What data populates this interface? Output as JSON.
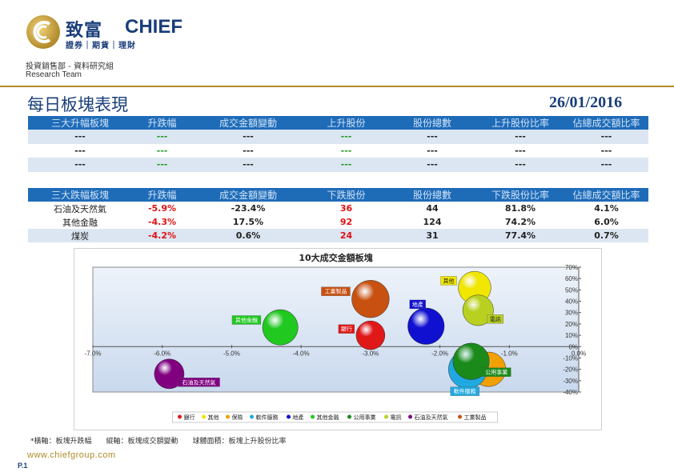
{
  "brand": {
    "cn": "致富",
    "en": "CHIEF",
    "sub": "證券｜期貨｜理財"
  },
  "dept": "投資銷售部 - 資料研究組",
  "team": "Research Team",
  "title": "每日板塊表現",
  "date": "26/01/2016",
  "colors": {
    "header_bg": "#1e6bb8",
    "band": "#dce6f2",
    "gold": "#b08a2a",
    "navy": "#1a3e7a",
    "red": "#e01010",
    "green": "#1f9a1f"
  },
  "top_table": {
    "headers": [
      "三大升幅板塊",
      "升跌幅",
      "成交金額變動",
      "上升股份",
      "股份總數",
      "上升股份比率",
      "佔總成交額比率"
    ],
    "rows": [
      [
        "---",
        "---",
        "---",
        "---",
        "---",
        "---",
        "---"
      ],
      [
        "---",
        "---",
        "---",
        "---",
        "---",
        "---",
        "---"
      ],
      [
        "---",
        "---",
        "---",
        "---",
        "---",
        "---",
        "---"
      ]
    ]
  },
  "bottom_table": {
    "headers": [
      "三大跌幅板塊",
      "升跌幅",
      "成交金額變動",
      "下跌股份",
      "股份總數",
      "下跌股份比率",
      "佔總成交額比率"
    ],
    "rows": [
      [
        "石油及天然氣",
        "-5.9%",
        "-23.4%",
        "36",
        "44",
        "81.8%",
        "4.1%"
      ],
      [
        "其他金融",
        "-4.3%",
        "17.5%",
        "92",
        "124",
        "74.2%",
        "6.0%"
      ],
      [
        "煤炭",
        "-4.2%",
        "0.6%",
        "24",
        "31",
        "77.4%",
        "0.7%"
      ]
    ]
  },
  "chart_data": {
    "type": "scatter",
    "title": "10大成交金額板塊",
    "xlim": [
      -7.0,
      0.0
    ],
    "ylim": [
      -40,
      70
    ],
    "x_ticks": [
      "-7.0%",
      "-6.0%",
      "-5.0%",
      "-4.0%",
      "-3.0%",
      "-2.0%",
      "-1.0%",
      "0.0%"
    ],
    "y_ticks": [
      "70%",
      "60%",
      "50%",
      "40%",
      "30%",
      "20%",
      "10%",
      "0%",
      "-10%",
      "-20%",
      "-30%",
      "-40%"
    ],
    "series": [
      {
        "name": "銀行",
        "x": -3.0,
        "y": 10,
        "size": 0.5,
        "color": "#e01818",
        "label_color": "#e01818",
        "label_side": "left"
      },
      {
        "name": "其他",
        "x": -1.5,
        "y": 52,
        "size": 0.7,
        "color": "#f0e600",
        "label_color": "#f0e600",
        "label_side": "left"
      },
      {
        "name": "保險",
        "x": -1.3,
        "y": -20,
        "size": 0.8,
        "color": "#f0a000",
        "label_color": "#f0a000",
        "label_side": "none"
      },
      {
        "name": "軟件服務",
        "x": -1.6,
        "y": -20,
        "size": 1.0,
        "color": "#20a8e0",
        "label_color": "#20a8e0",
        "label_side": "below"
      },
      {
        "name": "地產",
        "x": -2.2,
        "y": 18,
        "size": 0.9,
        "color": "#1010d0",
        "label_color": "#1010d0",
        "label_side": "upleft"
      },
      {
        "name": "其他金融",
        "x": -4.3,
        "y": 17,
        "size": 0.85,
        "color": "#20c820",
        "label_color": "#20c820",
        "label_side": "left"
      },
      {
        "name": "公用事業",
        "x": -1.55,
        "y": -13,
        "size": 0.9,
        "color": "#1a8a1a",
        "label_color": "#1a8a1a",
        "label_side": "right"
      },
      {
        "name": "電訊",
        "x": -1.45,
        "y": 32,
        "size": 0.6,
        "color": "#b8d020",
        "label_color": "#b8d020",
        "label_side": "right"
      },
      {
        "name": "石油及天然氣",
        "x": -5.9,
        "y": -24,
        "size": 0.55,
        "color": "#800080",
        "label_color": "#800080",
        "label_side": "right"
      },
      {
        "name": "工業製品",
        "x": -3.0,
        "y": 42,
        "size": 0.95,
        "color": "#c85010",
        "label_color": "#c85010",
        "label_side": "left"
      }
    ],
    "legend": [
      "銀行",
      "其他",
      "保險",
      "軟件服務",
      "地產",
      "其他金融",
      "公用事業",
      "電訊",
      "石油及天然氣",
      "工業製品"
    ],
    "legend_placement": "bottom"
  },
  "footnote": "*橫軸：板塊升跌幅　　縱軸：板塊成交額變動　　球體面積：板塊上升股份比率",
  "www": "www.chiefgroup.com",
  "page": "P.1"
}
